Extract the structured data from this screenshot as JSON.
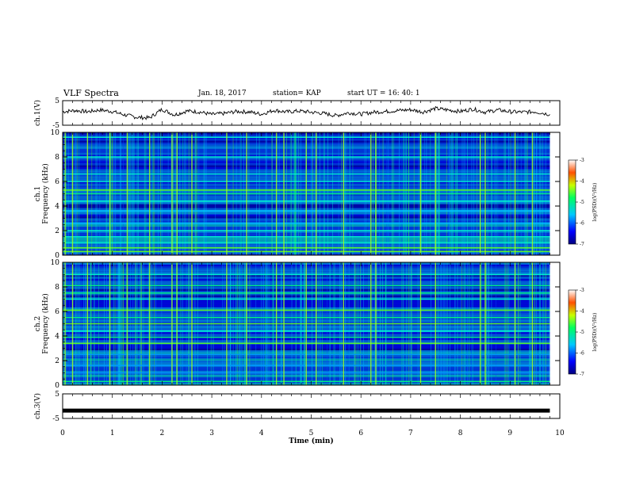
{
  "header": {
    "title": "VLF Spectra",
    "date": "Jan. 18, 2017",
    "station": "station= KAP",
    "start": "start  UT =   16: 40: 1"
  },
  "chart_data": [
    {
      "type": "line",
      "panel": "ch1-waveform",
      "ylabel": "ch.1(V)",
      "ylim": [
        -5,
        5
      ],
      "yticks": [
        "5",
        "-5"
      ],
      "xlim": [
        0,
        10
      ],
      "x": [
        0,
        0.25,
        0.5,
        0.75,
        1.0,
        1.25,
        1.5,
        1.75,
        2.0,
        2.25,
        2.5,
        2.75,
        3.0,
        3.25,
        3.5,
        3.75,
        4.0,
        4.25,
        4.5,
        4.75,
        5.0,
        5.25,
        5.5,
        5.75,
        6.0,
        6.25,
        6.5,
        6.75,
        7.0,
        7.25,
        7.5,
        7.75,
        8.0,
        8.25,
        8.5,
        8.75,
        9.0,
        9.25,
        9.5,
        9.8
      ],
      "values": [
        0.5,
        1.0,
        0.5,
        1.2,
        0.6,
        -0.8,
        -1.8,
        -2.0,
        1.5,
        -0.8,
        0.8,
        0.4,
        -0.6,
        -0.2,
        0.6,
        0.4,
        -0.5,
        1.1,
        0.4,
        0.8,
        0.3,
        -0.2,
        -1.1,
        0.1,
        -0.5,
        0.3,
        0.6,
        1.0,
        1.3,
        0.4,
        1.8,
        1.2,
        0.6,
        1.6,
        0.3,
        1.2,
        0.5,
        0.3,
        0.5,
        -0.6
      ]
    },
    {
      "type": "heatmap",
      "panel": "ch1-spectrogram",
      "ylabel": "ch.1\nFrequency (kHz)",
      "ylim": [
        0,
        10
      ],
      "yticks": [
        "0",
        "2",
        "4",
        "6",
        "8",
        "10"
      ],
      "xlim": [
        0,
        9.8
      ],
      "colorbar": {
        "label": "log(PSD)(V²/Hz)",
        "range": [
          -7,
          -3
        ],
        "ticks": [
          "-3",
          "-4",
          "-5",
          "-6",
          "-7"
        ]
      },
      "bands": [
        {
          "kHz": 0.3,
          "level": 0.75
        },
        {
          "kHz": 0.6,
          "level": 0.7
        },
        {
          "kHz": 1.0,
          "level": 0.55
        },
        {
          "kHz": 1.5,
          "level": 0.5
        },
        {
          "kHz": 2.0,
          "level": 0.5
        },
        {
          "kHz": 2.6,
          "level": 0.45
        },
        {
          "kHz": 3.6,
          "level": 0.45
        },
        {
          "kHz": 4.4,
          "level": 0.55
        },
        {
          "kHz": 5.0,
          "level": 0.65
        },
        {
          "kHz": 5.3,
          "level": 0.7
        },
        {
          "kHz": 6.0,
          "level": 0.5
        },
        {
          "kHz": 6.6,
          "level": 0.55
        },
        {
          "kHz": 8.0,
          "level": 0.5
        },
        {
          "kHz": 9.6,
          "level": 0.5
        }
      ],
      "impulses_min": [
        0.05,
        0.2,
        0.5,
        0.95,
        1.3,
        1.75,
        2.2,
        2.3,
        2.6,
        3.3,
        3.7,
        4.3,
        4.45,
        4.9,
        5.1,
        5.65,
        6.2,
        6.3,
        7.2,
        7.5,
        8.4,
        8.5,
        9.1,
        9.45
      ]
    },
    {
      "type": "heatmap",
      "panel": "ch2-spectrogram",
      "ylabel": "ch.2\nFrequency (kHz)",
      "ylim": [
        0,
        10
      ],
      "yticks": [
        "0",
        "2",
        "4",
        "6",
        "8",
        "10"
      ],
      "xlim": [
        0,
        9.8
      ],
      "colorbar": {
        "label": "log(PSD)(V²/Hz)",
        "range": [
          -7,
          -3
        ],
        "ticks": [
          "-3",
          "-4",
          "-5",
          "-6",
          "-7"
        ]
      },
      "bands": [
        {
          "kHz": 0.3,
          "level": 0.6
        },
        {
          "kHz": 1.0,
          "level": 0.4
        },
        {
          "kHz": 1.6,
          "level": 0.4
        },
        {
          "kHz": 2.5,
          "level": 0.4
        },
        {
          "kHz": 3.4,
          "level": 0.75
        },
        {
          "kHz": 3.9,
          "level": 0.6
        },
        {
          "kHz": 4.4,
          "level": 0.55
        },
        {
          "kHz": 5.0,
          "level": 0.7
        },
        {
          "kHz": 5.5,
          "level": 0.6
        },
        {
          "kHz": 6.1,
          "level": 0.7
        },
        {
          "kHz": 7.0,
          "level": 0.55
        },
        {
          "kHz": 7.5,
          "level": 0.65
        },
        {
          "kHz": 8.1,
          "level": 0.6
        },
        {
          "kHz": 9.0,
          "level": 0.55
        }
      ],
      "impulses_min": [
        0.05,
        0.2,
        0.5,
        0.95,
        1.3,
        1.75,
        2.2,
        2.3,
        2.6,
        3.3,
        3.7,
        4.3,
        4.45,
        4.9,
        5.1,
        5.65,
        6.2,
        6.3,
        7.2,
        7.5,
        8.4,
        8.5,
        9.1,
        9.45
      ]
    },
    {
      "type": "line",
      "panel": "ch3-waveform",
      "ylabel": "ch.3(V)",
      "ylim": [
        -5,
        5
      ],
      "yticks": [
        "5",
        "-5"
      ],
      "xlim": [
        0,
        10
      ],
      "x": [
        0,
        9.8
      ],
      "values": [
        -1.8,
        -1.8
      ],
      "xlabel": "Time  (min)",
      "xticks": [
        "0",
        "1",
        "2",
        "3",
        "4",
        "5",
        "6",
        "7",
        "8",
        "9",
        "10"
      ]
    }
  ]
}
